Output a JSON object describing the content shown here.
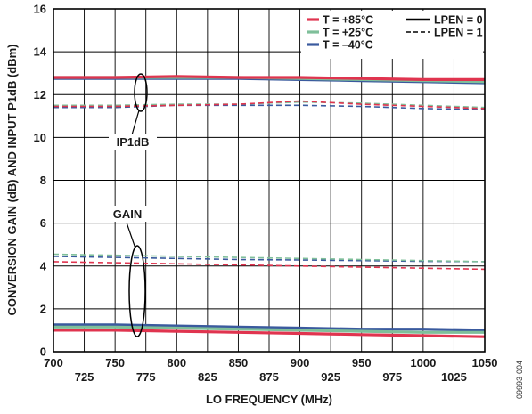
{
  "chart_data": {
    "type": "line",
    "xlabel": "LO FREQUENCY (MHz)",
    "ylabel": "CONVERSION GAIN (dB) AND INPUT P1dB (dBm)",
    "xlim": [
      700,
      1050
    ],
    "ylim": [
      0,
      16
    ],
    "x_ticks_major": [
      700,
      750,
      800,
      850,
      900,
      950,
      1000,
      1050
    ],
    "x_ticks_minor": [
      725,
      775,
      825,
      875,
      925,
      975,
      1025
    ],
    "y_ticks": [
      0,
      2,
      4,
      6,
      8,
      10,
      12,
      14,
      16
    ],
    "grid": true,
    "legend": {
      "placement": "top-right",
      "temperatures": [
        {
          "label": "T = +85°C",
          "color": "#e0344f"
        },
        {
          "label": "T = +25°C",
          "color": "#7fbf9a"
        },
        {
          "label": "T = –40°C",
          "color": "#3a5a9e"
        }
      ],
      "styles": [
        {
          "label": "LPEN = 0",
          "dash": "solid"
        },
        {
          "label": "LPEN = 1",
          "dash": "dashed"
        }
      ]
    },
    "annotations": {
      "ip1db": "IP1dB",
      "gain": "GAIN"
    },
    "x": [
      700,
      750,
      800,
      850,
      900,
      950,
      1000,
      1050
    ],
    "series": [
      {
        "name": "IP1dB T=+85°C LPEN=0",
        "temp": 0,
        "style": 0,
        "values": [
          12.8,
          12.8,
          12.85,
          12.8,
          12.8,
          12.75,
          12.7,
          12.7
        ]
      },
      {
        "name": "IP1dB T=+25°C LPEN=0",
        "temp": 1,
        "style": 0,
        "values": [
          12.8,
          12.8,
          12.8,
          12.8,
          12.75,
          12.7,
          12.65,
          12.6
        ]
      },
      {
        "name": "IP1dB T=-40°C LPEN=0",
        "temp": 2,
        "style": 0,
        "values": [
          12.75,
          12.75,
          12.75,
          12.75,
          12.7,
          12.65,
          12.6,
          12.55
        ]
      },
      {
        "name": "IP1dB T=+85°C LPEN=1",
        "temp": 0,
        "style": 1,
        "values": [
          11.45,
          11.45,
          11.5,
          11.55,
          11.7,
          11.55,
          11.45,
          11.35
        ]
      },
      {
        "name": "IP1dB T=+25°C LPEN=1",
        "temp": 1,
        "style": 1,
        "values": [
          11.5,
          11.5,
          11.55,
          11.55,
          11.65,
          11.6,
          11.5,
          11.4
        ]
      },
      {
        "name": "IP1dB T=-40°C LPEN=1",
        "temp": 2,
        "style": 1,
        "values": [
          11.4,
          11.4,
          11.5,
          11.5,
          11.5,
          11.45,
          11.35,
          11.3
        ]
      },
      {
        "name": "GAIN T=+85°C LPEN=1",
        "temp": 0,
        "style": 1,
        "values": [
          4.2,
          4.15,
          4.1,
          4.05,
          4.0,
          3.95,
          3.9,
          3.85
        ]
      },
      {
        "name": "GAIN T=+25°C LPEN=1",
        "temp": 1,
        "style": 1,
        "values": [
          4.55,
          4.5,
          4.45,
          4.4,
          4.35,
          4.3,
          4.25,
          4.2
        ]
      },
      {
        "name": "GAIN T=-40°C LPEN=1",
        "temp": 2,
        "style": 1,
        "values": [
          4.45,
          4.4,
          4.35,
          4.3,
          4.28,
          4.25,
          4.22,
          4.2
        ]
      },
      {
        "name": "GAIN T=+85°C LPEN=0",
        "temp": 0,
        "style": 0,
        "values": [
          1.0,
          1.0,
          0.95,
          0.9,
          0.85,
          0.8,
          0.75,
          0.7
        ]
      },
      {
        "name": "GAIN T=+25°C LPEN=0",
        "temp": 1,
        "style": 0,
        "values": [
          1.15,
          1.15,
          1.1,
          1.05,
          1.0,
          0.95,
          0.9,
          0.9
        ]
      },
      {
        "name": "GAIN T=-40°C LPEN=0",
        "temp": 2,
        "style": 0,
        "values": [
          1.25,
          1.25,
          1.2,
          1.15,
          1.1,
          1.05,
          1.05,
          1.0
        ]
      }
    ]
  },
  "figure_id": "09993-004"
}
